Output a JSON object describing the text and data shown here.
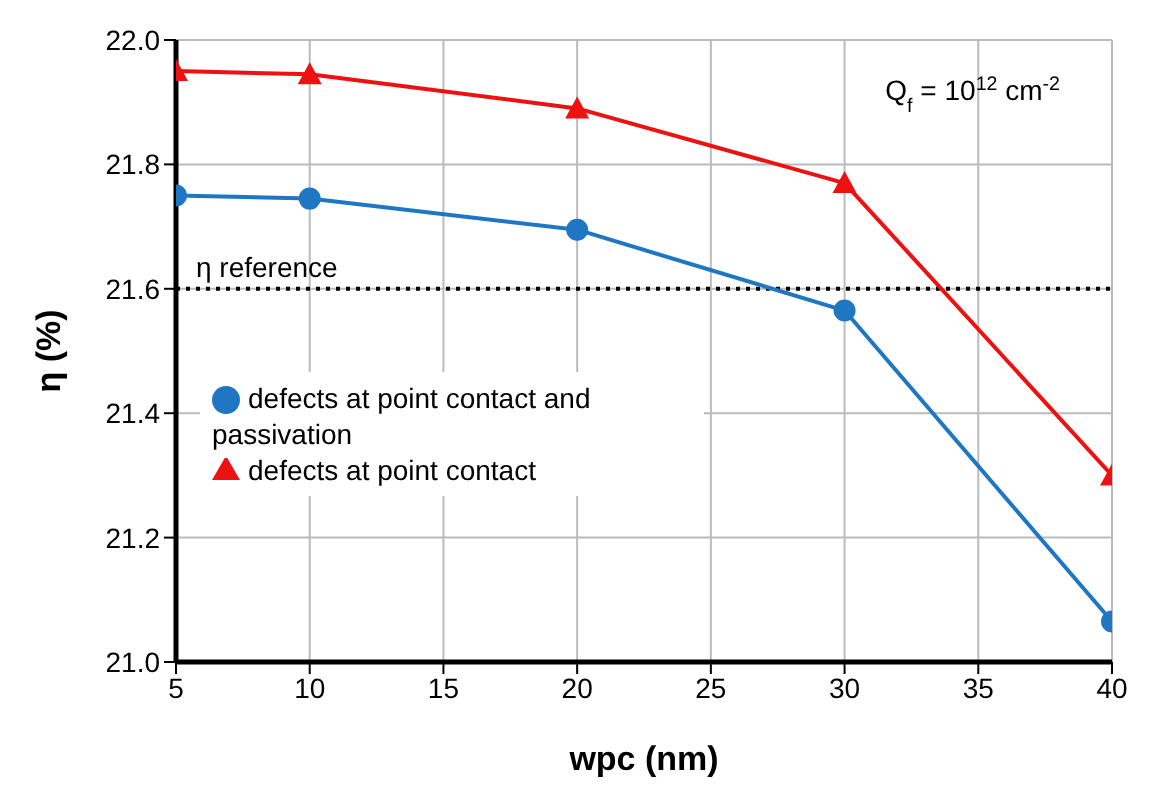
{
  "chart_data": {
    "type": "line",
    "xlabel": "wpc (nm)",
    "ylabel": "η (%)",
    "x": [
      5,
      10,
      20,
      30,
      40
    ],
    "series": [
      {
        "name": "defects at point contact and passivation",
        "color": "#1f77c4",
        "values": [
          21.75,
          21.745,
          21.695,
          21.565,
          21.065
        ],
        "marker": "circle"
      },
      {
        "name": "defects at point contact",
        "color": "#ee1111",
        "values": [
          21.95,
          21.945,
          21.89,
          21.77,
          21.3
        ],
        "marker": "triangle"
      }
    ],
    "xlim": [
      5,
      40
    ],
    "xticks": [
      5,
      10,
      15,
      20,
      25,
      30,
      35,
      40
    ],
    "ylim": [
      21.0,
      22.0
    ],
    "yticks": [
      {
        "value": 21.0,
        "label": "21.0"
      },
      {
        "value": 21.2,
        "label": "21.2"
      },
      {
        "value": 21.4,
        "label": "21.4"
      },
      {
        "value": 21.6,
        "label": "21.6"
      },
      {
        "value": 21.8,
        "label": "21.8"
      },
      {
        "value": 22.0,
        "label": "22.0"
      }
    ],
    "ref_lines": [
      {
        "axis": "y",
        "value": 21.6,
        "label": "η reference",
        "color": "#000000",
        "line_style": "dotted"
      }
    ],
    "annotations": [
      "Q$_{f}$ = 10$^{12}$ cm$^{-2}$"
    ],
    "grid": true,
    "legend": "left",
    "line_style": "solid"
  }
}
